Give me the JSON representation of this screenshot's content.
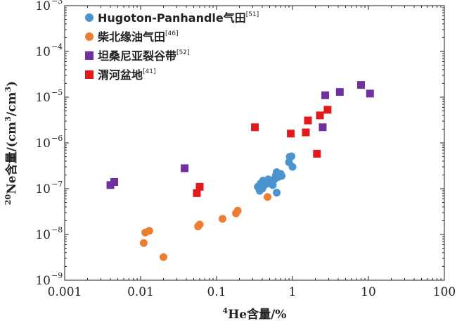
{
  "chart_data": {
    "type": "scatter",
    "xscale": "log",
    "yscale": "log",
    "xlim": [
      0.001,
      100
    ],
    "ylim": [
      1e-09,
      0.001
    ],
    "grid": false,
    "legend_position": "top-left",
    "xlabel": {
      "sup": "4",
      "text": "He含量/%"
    },
    "ylabel": {
      "sup": "20",
      "text": "Ne含量/(cm",
      "sup2": "3",
      "mid": "/cm",
      "sup3": "3",
      "end": ")"
    },
    "xticks": [
      {
        "value": 0.001,
        "label": "0.001"
      },
      {
        "value": 0.01,
        "label": "0.01"
      },
      {
        "value": 0.1,
        "label": "0.1"
      },
      {
        "value": 1,
        "label": "1"
      },
      {
        "value": 10,
        "label": "10"
      },
      {
        "value": 100,
        "label": "100"
      }
    ],
    "yticks": [
      {
        "value": 1e-09,
        "base": "10",
        "exp": "−9"
      },
      {
        "value": 1e-08,
        "base": "10",
        "exp": "−8"
      },
      {
        "value": 1e-07,
        "base": "10",
        "exp": "−7"
      },
      {
        "value": 1e-06,
        "base": "10",
        "exp": "−6"
      },
      {
        "value": 1e-05,
        "base": "10",
        "exp": "−5"
      },
      {
        "value": 0.0001,
        "base": "10",
        "exp": "−4"
      },
      {
        "value": 0.001,
        "base": "10",
        "exp": "−3"
      }
    ],
    "series": [
      {
        "name": "Hugoton-Panhandle气田",
        "ref": "[51]",
        "marker": "circle",
        "color": "#4a94cf",
        "points": [
          [
            0.35,
            1.1e-07
          ],
          [
            0.37,
            9e-08
          ],
          [
            0.38,
            1.3e-07
          ],
          [
            0.4,
            1e-07
          ],
          [
            0.41,
            1.5e-07
          ],
          [
            0.43,
            1.2e-07
          ],
          [
            0.46,
            1.4e-07
          ],
          [
            0.48,
            1.6e-07
          ],
          [
            0.5,
            1.3e-07
          ],
          [
            0.52,
            1.5e-07
          ],
          [
            0.55,
            1.2e-07
          ],
          [
            0.58,
            1.6e-07
          ],
          [
            0.6,
            1.9e-07
          ],
          [
            0.62,
            2.3e-07
          ],
          [
            0.65,
            1.8e-07
          ],
          [
            0.7,
            2.1e-07
          ],
          [
            0.72,
            1.9e-07
          ],
          [
            0.62,
            8.2e-08
          ],
          [
            0.9,
            3.8e-07
          ],
          [
            0.92,
            5e-07
          ],
          [
            0.97,
            5.1e-07
          ],
          [
            1.0,
            3e-07
          ]
        ]
      },
      {
        "name": "柴北缘油气田",
        "ref": "[46]",
        "marker": "circle",
        "color": "#ed7d31",
        "points": [
          [
            0.011,
            6.5e-09
          ],
          [
            0.0115,
            1.1e-08
          ],
          [
            0.013,
            1.2e-08
          ],
          [
            0.02,
            3.2e-09
          ],
          [
            0.057,
            1.5e-08
          ],
          [
            0.06,
            1.65e-08
          ],
          [
            0.12,
            2.2e-08
          ],
          [
            0.18,
            2.9e-08
          ],
          [
            0.19,
            3.3e-08
          ],
          [
            0.47,
            6.6e-08
          ]
        ]
      },
      {
        "name": "坦桑尼亚裂谷带",
        "ref": "[52]",
        "marker": "square",
        "color": "#7030a0",
        "points": [
          [
            0.004,
            1.2e-07
          ],
          [
            0.0045,
            1.4e-07
          ],
          [
            0.038,
            2.8e-07
          ],
          [
            2.5,
            2.2e-06
          ],
          [
            2.7,
            1.1e-05
          ],
          [
            4.2,
            1.3e-05
          ],
          [
            8.0,
            1.85e-05
          ],
          [
            10.5,
            1.2e-05
          ]
        ]
      },
      {
        "name": "渭河盆地",
        "ref": "[41]",
        "marker": "square",
        "color": "#e31a1c",
        "points": [
          [
            0.055,
            8e-08
          ],
          [
            0.06,
            1.1e-07
          ],
          [
            0.32,
            2.2e-06
          ],
          [
            0.95,
            1.6e-06
          ],
          [
            1.5,
            1.7e-06
          ],
          [
            1.6,
            3.1e-06
          ],
          [
            2.1,
            5.8e-07
          ],
          [
            2.3,
            4e-06
          ],
          [
            2.9,
            5.3e-06
          ]
        ]
      }
    ]
  }
}
